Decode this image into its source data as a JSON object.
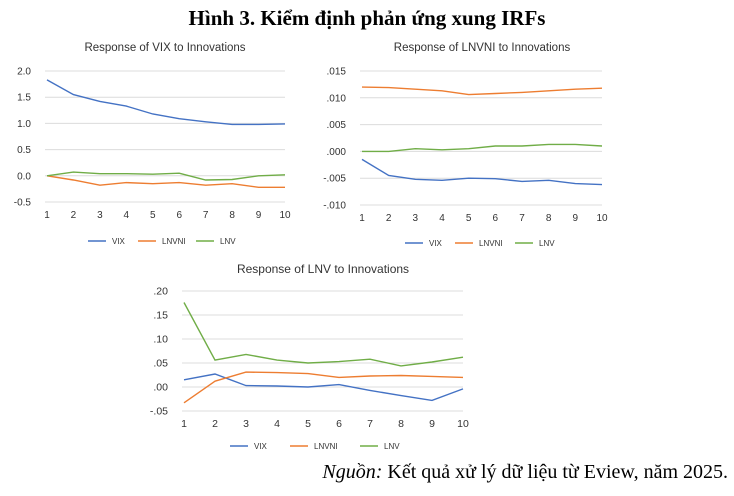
{
  "figure": {
    "title": "Hình 3. Kiểm định phản ứng xung IRFs",
    "source_label": "Nguồn:",
    "source_text": " Kết quả xử lý dữ liệu từ Eview, năm 2025."
  },
  "colors": {
    "VIX": "#4472c4",
    "LNVNI": "#ed7d31",
    "LNV": "#70ad47"
  },
  "chart_data": [
    {
      "type": "line",
      "title": "Response of VIX to Innovations",
      "x": [
        1,
        2,
        3,
        4,
        5,
        6,
        7,
        8,
        9,
        10
      ],
      "ylim": [
        -0.5,
        2.0
      ],
      "yticks": [
        -0.5,
        0.0,
        0.5,
        1.0,
        1.5,
        2.0
      ],
      "yticklabels": [
        "-0.5",
        "0.0",
        "0.5",
        "1.0",
        "1.5",
        "2.0"
      ],
      "grid": true,
      "legend": "bottom",
      "series": [
        {
          "name": "VIX",
          "values": [
            1.83,
            1.55,
            1.42,
            1.33,
            1.18,
            1.09,
            1.03,
            0.98,
            0.98,
            0.99
          ]
        },
        {
          "name": "LNVNI",
          "values": [
            0.0,
            -0.08,
            -0.18,
            -0.13,
            -0.15,
            -0.13,
            -0.18,
            -0.15,
            -0.22,
            -0.22
          ]
        },
        {
          "name": "LNV",
          "values": [
            0.0,
            0.07,
            0.04,
            0.04,
            0.03,
            0.05,
            -0.08,
            -0.07,
            0.0,
            0.02
          ]
        }
      ]
    },
    {
      "type": "line",
      "title": "Response of LNVNI to Innovations",
      "x": [
        1,
        2,
        3,
        4,
        5,
        6,
        7,
        8,
        9,
        10
      ],
      "ylim": [
        -0.01,
        0.015
      ],
      "yticks": [
        -0.01,
        -0.005,
        0.0,
        0.005,
        0.01,
        0.015
      ],
      "yticklabels": [
        "-.010",
        "-.005",
        ".000",
        ".005",
        ".010",
        ".015"
      ],
      "grid": true,
      "legend": "bottom",
      "series": [
        {
          "name": "VIX",
          "values": [
            -0.0015,
            -0.0045,
            -0.0052,
            -0.0054,
            -0.005,
            -0.0051,
            -0.0056,
            -0.0054,
            -0.006,
            -0.0062
          ]
        },
        {
          "name": "LNVNI",
          "values": [
            0.012,
            0.0119,
            0.0116,
            0.0113,
            0.0106,
            0.0108,
            0.011,
            0.0113,
            0.0116,
            0.0118
          ]
        },
        {
          "name": "LNV",
          "values": [
            0.0,
            0.0,
            0.0005,
            0.0003,
            0.0005,
            0.001,
            0.001,
            0.0013,
            0.0013,
            0.001
          ]
        }
      ]
    },
    {
      "type": "line",
      "title": "Response of LNV to Innovations",
      "x": [
        1,
        2,
        3,
        4,
        5,
        6,
        7,
        8,
        9,
        10
      ],
      "ylim": [
        -0.05,
        0.2
      ],
      "yticks": [
        -0.05,
        0.0,
        0.05,
        0.1,
        0.15,
        0.2
      ],
      "yticklabels": [
        "-.05",
        ".00",
        ".05",
        ".10",
        ".15",
        ".20"
      ],
      "grid": true,
      "legend": "bottom",
      "series": [
        {
          "name": "VIX",
          "values": [
            0.015,
            0.027,
            0.003,
            0.002,
            0.0,
            0.005,
            -0.007,
            -0.018,
            -0.028,
            -0.004
          ]
        },
        {
          "name": "LNVNI",
          "values": [
            -0.033,
            0.012,
            0.031,
            0.03,
            0.028,
            0.02,
            0.023,
            0.024,
            0.022,
            0.02
          ]
        },
        {
          "name": "LNV",
          "values": [
            0.176,
            0.056,
            0.068,
            0.056,
            0.05,
            0.053,
            0.058,
            0.044,
            0.052,
            0.062
          ]
        }
      ]
    }
  ]
}
